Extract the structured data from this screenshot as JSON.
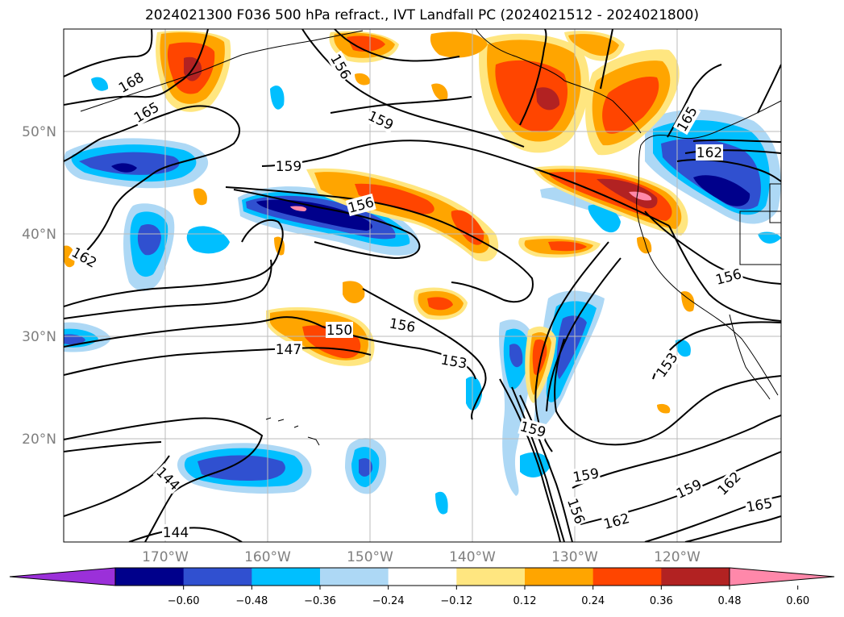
{
  "title": "2024021300 F036 500 hPa refract., IVT Landfall PC (2024021512 - 2024021800)",
  "lat_labels": [
    "50°N",
    "40°N",
    "30°N",
    "20°N"
  ],
  "lon_labels": [
    "170°W",
    "160°W",
    "150°W",
    "140°W",
    "130°W",
    "120°W"
  ],
  "contour_labels": [
    {
      "text": "168",
      "rotate": -30
    },
    {
      "text": "165",
      "rotate": -30
    },
    {
      "text": "159",
      "rotate": 25
    },
    {
      "text": "159",
      "rotate": 0
    },
    {
      "text": "156",
      "rotate": -15
    },
    {
      "text": "156",
      "rotate": 60
    },
    {
      "text": "162",
      "rotate": 30
    },
    {
      "text": "150",
      "rotate": 0
    },
    {
      "text": "147",
      "rotate": 0
    },
    {
      "text": "156",
      "rotate": 10
    },
    {
      "text": "153",
      "rotate": 10
    },
    {
      "text": "159",
      "rotate": 15
    },
    {
      "text": "159",
      "rotate": -10
    },
    {
      "text": "156",
      "rotate": 70
    },
    {
      "text": "162",
      "rotate": -15
    },
    {
      "text": "159",
      "rotate": -25
    },
    {
      "text": "162",
      "rotate": -45
    },
    {
      "text": "165",
      "rotate": -10
    },
    {
      "text": "153",
      "rotate": -55
    },
    {
      "text": "156",
      "rotate": -15
    },
    {
      "text": "165",
      "rotate": -60
    },
    {
      "text": "162",
      "rotate": 0
    },
    {
      "text": "144",
      "rotate": 45
    },
    {
      "text": "144",
      "rotate": 0
    }
  ],
  "colorbar": {
    "colors": [
      "#9b30d9",
      "#00008b",
      "#3050d0",
      "#00bfff",
      "#add8f5",
      "#ffffff",
      "#ffe680",
      "#ffa500",
      "#ff4500",
      "#b22222",
      "#ff88aa"
    ],
    "tick_labels": [
      "−0.60",
      "−0.48",
      "−0.36",
      "−0.24",
      "−0.12",
      "0.12",
      "0.24",
      "0.36",
      "0.48",
      "0.60"
    ]
  },
  "colors": {
    "grid": "#bbbbbb",
    "contour": "#000000",
    "tick_label": "#7f7f7f"
  }
}
